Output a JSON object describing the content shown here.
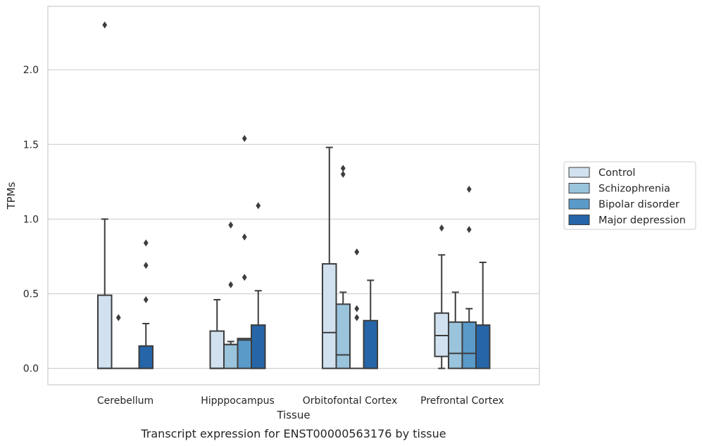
{
  "chart_data": {
    "type": "box",
    "caption": "Transcript expression for ENST00000563176 by tissue",
    "xlabel": "Tissue",
    "ylabel": "TPMs",
    "ylim": [
      -0.11,
      2.425
    ],
    "yticks": [
      0.0,
      0.5,
      1.0,
      1.5,
      2.0
    ],
    "ytick_labels": [
      "0.0",
      "0.5",
      "1.0",
      "1.5",
      "2.0"
    ],
    "grid": "horizontal",
    "legend_position": "right",
    "categories": [
      "Cerebellum",
      "Hipppocampus",
      "Orbitofontal Cortex",
      "Prefrontal Cortex"
    ],
    "series": [
      {
        "name": "Control",
        "color": "#d1e1f0",
        "boxes": [
          {
            "q1": 0.0,
            "median": 0.0,
            "q3": 0.49,
            "whisker_low": 0.0,
            "whisker_high": 1.0,
            "outliers": [
              2.3
            ]
          },
          {
            "q1": 0.0,
            "median": 0.0,
            "q3": 0.25,
            "whisker_low": 0.0,
            "whisker_high": 0.46,
            "outliers": []
          },
          {
            "q1": 0.0,
            "median": 0.24,
            "q3": 0.7,
            "whisker_low": 0.0,
            "whisker_high": 1.48,
            "outliers": []
          },
          {
            "q1": 0.08,
            "median": 0.22,
            "q3": 0.37,
            "whisker_low": 0.0,
            "whisker_high": 0.76,
            "outliers": [
              0.94
            ]
          }
        ]
      },
      {
        "name": "Schizophrenia",
        "color": "#9ac3dc",
        "boxes": [
          {
            "q1": 0.0,
            "median": 0.0,
            "q3": 0.0,
            "whisker_low": 0.0,
            "whisker_high": 0.0,
            "outliers": [
              0.34
            ]
          },
          {
            "q1": 0.0,
            "median": 0.16,
            "q3": 0.16,
            "whisker_low": 0.0,
            "whisker_high": 0.18,
            "outliers": [
              0.96,
              0.56
            ]
          },
          {
            "q1": 0.0,
            "median": 0.09,
            "q3": 0.43,
            "whisker_low": 0.0,
            "whisker_high": 0.51,
            "outliers": [
              1.34,
              1.3
            ]
          },
          {
            "q1": 0.0,
            "median": 0.1,
            "q3": 0.31,
            "whisker_low": 0.0,
            "whisker_high": 0.51,
            "outliers": []
          }
        ]
      },
      {
        "name": "Bipolar disorder",
        "color": "#5a9ac9",
        "boxes": [
          {
            "q1": 0.0,
            "median": 0.0,
            "q3": 0.0,
            "whisker_low": 0.0,
            "whisker_high": 0.0,
            "outliers": []
          },
          {
            "q1": 0.0,
            "median": 0.19,
            "q3": 0.2,
            "whisker_low": 0.0,
            "whisker_high": 0.2,
            "outliers": [
              1.54,
              0.88,
              0.61
            ]
          },
          {
            "q1": 0.0,
            "median": 0.0,
            "q3": 0.0,
            "whisker_low": 0.0,
            "whisker_high": 0.0,
            "outliers": [
              0.78,
              0.4,
              0.34
            ]
          },
          {
            "q1": 0.0,
            "median": 0.1,
            "q3": 0.31,
            "whisker_low": 0.0,
            "whisker_high": 0.4,
            "outliers": [
              1.2,
              0.93
            ]
          }
        ]
      },
      {
        "name": "Major depression",
        "color": "#2565a8",
        "boxes": [
          {
            "q1": 0.0,
            "median": 0.0,
            "q3": 0.15,
            "whisker_low": 0.0,
            "whisker_high": 0.3,
            "outliers": [
              0.84,
              0.69,
              0.46
            ]
          },
          {
            "q1": 0.0,
            "median": 0.0,
            "q3": 0.29,
            "whisker_low": 0.0,
            "whisker_high": 0.52,
            "outliers": [
              1.09
            ]
          },
          {
            "q1": 0.0,
            "median": 0.0,
            "q3": 0.32,
            "whisker_low": 0.0,
            "whisker_high": 0.59,
            "outliers": []
          },
          {
            "q1": 0.0,
            "median": 0.0,
            "q3": 0.29,
            "whisker_low": 0.0,
            "whisker_high": 0.71,
            "outliers": []
          }
        ]
      }
    ]
  },
  "colors": {
    "edge": "#3d3d3d",
    "grid": "#d0d0d0",
    "frame": "#cccccc"
  }
}
